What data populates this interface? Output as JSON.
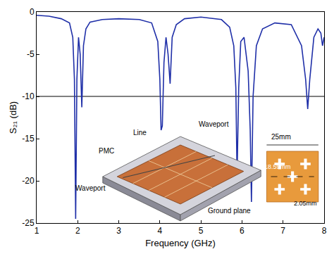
{
  "chart_data": {
    "type": "line",
    "x_label": "Frequency (GHz)",
    "y_label": "S₂₁ (dB)",
    "x": [
      1.0,
      1.3,
      1.6,
      1.8,
      1.88,
      1.92,
      1.95,
      1.98,
      2.02,
      2.06,
      2.1,
      2.14,
      2.2,
      2.3,
      2.6,
      3.0,
      3.5,
      3.8,
      3.95,
      4.0,
      4.03,
      4.06,
      4.1,
      4.15,
      4.2,
      4.25,
      4.3,
      4.4,
      4.6,
      5.0,
      5.5,
      5.7,
      5.8,
      5.85,
      5.88,
      5.92,
      5.97,
      6.05,
      6.15,
      6.2,
      6.23,
      6.27,
      6.35,
      6.5,
      6.8,
      7.2,
      7.45,
      7.55,
      7.6,
      7.65,
      7.75,
      7.85,
      7.92,
      7.96,
      8.0
    ],
    "values": [
      -0.4,
      -0.5,
      -0.8,
      -1.3,
      -3,
      -8,
      -24.5,
      -8,
      -3,
      -5,
      -11.3,
      -4,
      -2,
      -1.2,
      -0.9,
      -0.8,
      -0.9,
      -1.3,
      -3.5,
      -8,
      -14,
      -13.5,
      -6,
      -3,
      -5,
      -8.5,
      -3,
      -1.5,
      -0.8,
      -0.6,
      -0.9,
      -1.8,
      -4,
      -9,
      -19.5,
      -9,
      -3.5,
      -3,
      -7,
      -14,
      -22.5,
      -10,
      -4,
      -2,
      -1.3,
      -1.5,
      -4,
      -8,
      -11.5,
      -8,
      -3,
      -2,
      -2.5,
      -4,
      -3
    ],
    "color": "#1f2fa8",
    "hline": -10,
    "xlim": [
      1,
      8
    ],
    "xticks": [
      1,
      2,
      3,
      4,
      5,
      6,
      7,
      8
    ],
    "ylim": [
      -25,
      0
    ],
    "yticks": [
      -25,
      -20,
      -15,
      -10,
      -5,
      0
    ],
    "grid": false,
    "inset_labels": {
      "waveport_top": "Waveport",
      "waveport_left": "Waveport",
      "pmc": "PMC",
      "line": "Line",
      "ground_plane": "Ground plane",
      "cell_width": "25mm",
      "cell_inner": "18.59mm",
      "cell_gap": "2.05mm"
    }
  }
}
